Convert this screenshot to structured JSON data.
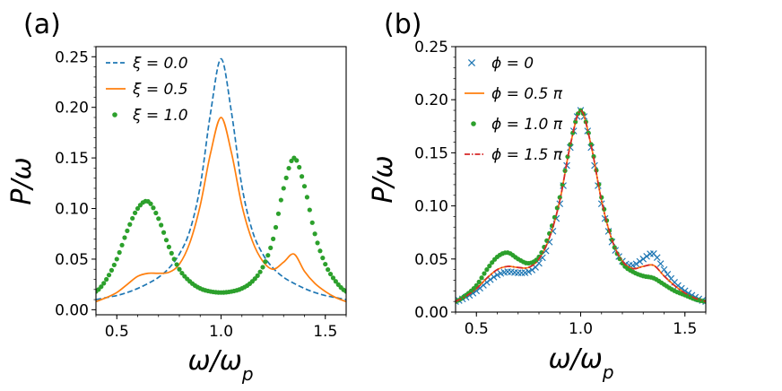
{
  "chart_data": [
    {
      "type": "line",
      "panel_label": "(a)",
      "xlabel": "ω/ω_p",
      "ylabel": "P/ω",
      "xlim": [
        0.4,
        1.6
      ],
      "ylim": [
        -0.005,
        0.26
      ],
      "xticks": [
        0.5,
        1.0,
        1.5
      ],
      "xtick_labels": [
        "0.5",
        "1.0",
        "1.5"
      ],
      "yticks": [
        0.0,
        0.05,
        0.1,
        0.15,
        0.2,
        0.25
      ],
      "ytick_labels": [
        "0.00",
        "0.05",
        "0.10",
        "0.15",
        "0.20",
        "0.25"
      ],
      "grid": false,
      "legend_position": "top-left",
      "x": [
        0.4,
        0.45,
        0.5,
        0.55,
        0.6,
        0.65,
        0.7,
        0.75,
        0.8,
        0.85,
        0.9,
        0.95,
        1.0,
        1.05,
        1.1,
        1.15,
        1.2,
        1.25,
        1.3,
        1.35,
        1.4,
        1.45,
        1.5,
        1.55,
        1.6
      ],
      "series": [
        {
          "name": "ξ = 0.0",
          "label_prefix": "ξ",
          "label_value": "0.0",
          "style": "dashed",
          "color": "#1f77b4",
          "values": [
            0.01,
            0.012,
            0.014,
            0.017,
            0.021,
            0.026,
            0.032,
            0.041,
            0.055,
            0.078,
            0.122,
            0.195,
            0.248,
            0.195,
            0.122,
            0.078,
            0.055,
            0.041,
            0.032,
            0.026,
            0.021,
            0.017,
            0.014,
            0.012,
            0.01
          ]
        },
        {
          "name": "ξ = 0.5",
          "label_prefix": "ξ",
          "label_value": "0.5",
          "style": "solid",
          "color": "#ff7f0e",
          "values": [
            0.008,
            0.012,
            0.017,
            0.025,
            0.033,
            0.036,
            0.036,
            0.037,
            0.045,
            0.066,
            0.103,
            0.155,
            0.19,
            0.155,
            0.103,
            0.068,
            0.048,
            0.04,
            0.047,
            0.055,
            0.038,
            0.026,
            0.018,
            0.012,
            0.008
          ]
        },
        {
          "name": "ξ = 1.0",
          "label_prefix": "ξ",
          "label_value": "1.0",
          "style": "dots",
          "color": "#2ca02c",
          "values": [
            0.018,
            0.03,
            0.05,
            0.078,
            0.1,
            0.107,
            0.09,
            0.062,
            0.04,
            0.028,
            0.021,
            0.018,
            0.017,
            0.018,
            0.021,
            0.028,
            0.042,
            0.07,
            0.12,
            0.15,
            0.122,
            0.075,
            0.045,
            0.028,
            0.018
          ]
        }
      ]
    },
    {
      "type": "line",
      "panel_label": "(b)",
      "xlabel": "ω/ω_p",
      "ylabel": "P/ω",
      "xlim": [
        0.4,
        1.6
      ],
      "ylim": [
        0.0,
        0.25
      ],
      "xticks": [
        0.5,
        1.0,
        1.5
      ],
      "xtick_labels": [
        "0.5",
        "1.0",
        "1.5"
      ],
      "yticks": [
        0.0,
        0.05,
        0.1,
        0.15,
        0.2,
        0.25
      ],
      "ytick_labels": [
        "0.00",
        "0.05",
        "0.10",
        "0.15",
        "0.20",
        "0.25"
      ],
      "grid": false,
      "legend_position": "top-left",
      "x": [
        0.4,
        0.45,
        0.5,
        0.55,
        0.6,
        0.65,
        0.7,
        0.75,
        0.8,
        0.85,
        0.9,
        0.95,
        1.0,
        1.05,
        1.1,
        1.15,
        1.2,
        1.25,
        1.3,
        1.35,
        1.4,
        1.45,
        1.5,
        1.55,
        1.6
      ],
      "series": [
        {
          "name": "ϕ = 0",
          "label_prefix": "ϕ",
          "label_value": "0",
          "style": "x",
          "color": "#1f77b4",
          "values": [
            0.01,
            0.014,
            0.02,
            0.028,
            0.035,
            0.038,
            0.037,
            0.038,
            0.046,
            0.066,
            0.102,
            0.155,
            0.19,
            0.155,
            0.102,
            0.066,
            0.048,
            0.044,
            0.05,
            0.055,
            0.04,
            0.028,
            0.02,
            0.014,
            0.01
          ]
        },
        {
          "name": "ϕ = 0.5 π",
          "label_prefix": "ϕ",
          "label_value": "0.5 π",
          "style": "solid",
          "color": "#ff7f0e",
          "values": [
            0.01,
            0.015,
            0.022,
            0.032,
            0.04,
            0.043,
            0.042,
            0.042,
            0.05,
            0.07,
            0.105,
            0.157,
            0.19,
            0.157,
            0.105,
            0.068,
            0.048,
            0.041,
            0.043,
            0.044,
            0.034,
            0.025,
            0.018,
            0.013,
            0.01
          ]
        },
        {
          "name": "ϕ = 1.0 π",
          "label_prefix": "ϕ",
          "label_value": "1.0 π",
          "style": "dots",
          "color": "#2ca02c",
          "values": [
            0.01,
            0.016,
            0.025,
            0.04,
            0.052,
            0.056,
            0.05,
            0.046,
            0.052,
            0.074,
            0.108,
            0.158,
            0.19,
            0.158,
            0.108,
            0.068,
            0.046,
            0.038,
            0.034,
            0.032,
            0.026,
            0.02,
            0.016,
            0.012,
            0.01
          ]
        },
        {
          "name": "ϕ = 1.5 π",
          "label_prefix": "ϕ",
          "label_value": "1.5 π",
          "style": "dashdot",
          "color": "#d62728",
          "values": [
            0.01,
            0.015,
            0.022,
            0.032,
            0.04,
            0.043,
            0.042,
            0.042,
            0.05,
            0.07,
            0.105,
            0.157,
            0.19,
            0.157,
            0.105,
            0.068,
            0.048,
            0.041,
            0.043,
            0.044,
            0.034,
            0.025,
            0.018,
            0.013,
            0.01
          ]
        }
      ]
    }
  ]
}
